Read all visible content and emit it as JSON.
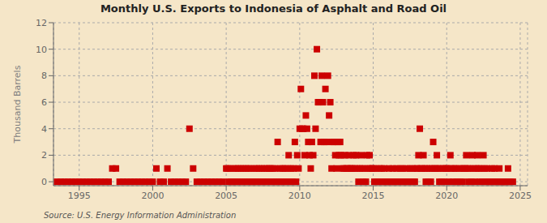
{
  "chart_data": {
    "type": "scatter",
    "title": "Monthly U.S. Exports to Indonesia of Asphalt and Road Oil",
    "ylabel": "Thousand Barrels",
    "source": "Source: U.S. Energy Information Administration",
    "color": "#cc0000",
    "marker": "square",
    "grid": true,
    "xlim": [
      1993.25,
      2025.5
    ],
    "ylim": [
      -0.3,
      12
    ],
    "xticks": [
      1995,
      2000,
      2005,
      2010,
      2015,
      2020,
      2025
    ],
    "yticks": [
      0,
      2,
      4,
      6,
      8,
      10,
      12
    ],
    "x": [
      1993.5,
      1993.75,
      1994.0,
      1994.25,
      1994.5,
      1994.75,
      1995.0,
      1995.25,
      1995.5,
      1995.75,
      1996.0,
      1996.25,
      1996.5,
      1996.75,
      1997.0,
      1997.25,
      1997.5,
      1997.75,
      1998.0,
      1998.25,
      1998.5,
      1998.75,
      1999.0,
      1999.25,
      1999.5,
      1999.75,
      2000.0,
      2000.25,
      2000.5,
      2000.75,
      2001.0,
      2001.25,
      2001.5,
      2001.75,
      2002.0,
      2002.25,
      2002.5,
      2002.75,
      2003.0,
      2003.25,
      2003.5,
      2003.75,
      2004.0,
      2004.25,
      2004.5,
      2004.75,
      2005.0,
      2005.08,
      2005.17,
      2005.25,
      2005.33,
      2005.42,
      2005.5,
      2005.58,
      2005.67,
      2005.75,
      2005.83,
      2005.92,
      2006.0,
      2006.08,
      2006.17,
      2006.25,
      2006.33,
      2006.42,
      2006.5,
      2006.58,
      2006.67,
      2006.75,
      2006.83,
      2006.92,
      2007.0,
      2007.08,
      2007.17,
      2007.25,
      2007.33,
      2007.42,
      2007.5,
      2007.58,
      2007.67,
      2007.75,
      2007.83,
      2007.92,
      2008.0,
      2008.08,
      2008.17,
      2008.25,
      2008.33,
      2008.42,
      2008.5,
      2008.58,
      2008.67,
      2008.75,
      2008.83,
      2008.92,
      2009.0,
      2009.08,
      2009.17,
      2009.25,
      2009.33,
      2009.42,
      2009.5,
      2009.58,
      2009.67,
      2009.75,
      2009.83,
      2009.92,
      2010.0,
      2010.08,
      2010.17,
      2010.25,
      2010.33,
      2010.42,
      2010.5,
      2010.58,
      2010.67,
      2010.75,
      2010.83,
      2010.92,
      2011.0,
      2011.08,
      2011.17,
      2011.25,
      2011.33,
      2011.42,
      2011.5,
      2011.58,
      2011.67,
      2011.75,
      2011.83,
      2011.92,
      2012.0,
      2012.08,
      2012.17,
      2012.25,
      2012.33,
      2012.42,
      2012.5,
      2012.58,
      2012.67,
      2012.75,
      2012.83,
      2012.92,
      2013.0,
      2013.08,
      2013.17,
      2013.25,
      2013.33,
      2013.42,
      2013.5,
      2013.58,
      2013.67,
      2013.75,
      2013.83,
      2013.92,
      2014.0,
      2014.08,
      2014.17,
      2014.25,
      2014.33,
      2014.42,
      2014.5,
      2014.58,
      2014.67,
      2014.75,
      2014.83,
      2014.92,
      2015.0,
      2015.08,
      2015.17,
      2015.25,
      2015.33,
      2015.42,
      2015.5,
      2015.58,
      2015.67,
      2015.75,
      2015.83,
      2015.92,
      2016.0,
      2016.08,
      2016.17,
      2016.25,
      2016.33,
      2016.42,
      2016.5,
      2016.58,
      2016.67,
      2016.75,
      2016.83,
      2016.92,
      2017.0,
      2017.08,
      2017.17,
      2017.25,
      2017.33,
      2017.42,
      2017.5,
      2017.58,
      2017.67,
      2017.75,
      2017.83,
      2017.92,
      2018.0,
      2018.08,
      2018.17,
      2018.25,
      2018.33,
      2018.42,
      2018.5,
      2018.58,
      2018.67,
      2018.75,
      2018.83,
      2018.92,
      2019.0,
      2019.08,
      2019.17,
      2019.25,
      2019.33,
      2019.42,
      2019.5,
      2019.58,
      2019.67,
      2019.75,
      2019.83,
      2019.92,
      2020.0,
      2020.08,
      2020.17,
      2020.25,
      2020.33,
      2020.42,
      2020.5,
      2020.58,
      2020.67,
      2020.75,
      2020.83,
      2020.92,
      2021.0,
      2021.08,
      2021.17,
      2021.25,
      2021.33,
      2021.42,
      2021.5,
      2021.58,
      2021.67,
      2021.75,
      2021.83,
      2021.92,
      2022.0,
      2022.08,
      2022.17,
      2022.25,
      2022.33,
      2022.42,
      2022.5,
      2022.58,
      2022.67,
      2022.75,
      2022.83,
      2022.92,
      2023.0,
      2023.08,
      2023.17,
      2023.25,
      2023.33,
      2023.42,
      2023.5,
      2023.58,
      2023.67,
      2023.75,
      2023.83,
      2023.92,
      2024.0,
      2024.08,
      2024.17,
      2024.25,
      2024.33,
      2024.5
    ],
    "values": [
      0,
      0,
      0,
      0,
      0,
      0,
      0,
      0,
      0,
      0,
      0,
      0,
      0,
      0,
      0,
      1,
      1,
      0,
      0,
      0,
      0,
      0,
      0,
      0,
      0,
      0,
      0,
      1,
      0,
      0,
      1,
      0,
      0,
      0,
      0,
      0,
      4,
      1,
      0,
      0,
      0,
      0,
      0,
      0,
      0,
      0,
      1,
      1,
      0,
      1,
      0,
      0,
      1,
      0,
      1,
      0,
      1,
      0,
      1,
      0,
      1,
      0,
      1,
      0,
      1,
      0,
      1,
      0,
      0,
      1,
      0,
      1,
      0,
      1,
      0,
      1,
      0,
      1,
      0,
      1,
      0,
      1,
      1,
      0,
      1,
      0,
      1,
      0,
      3,
      0,
      1,
      0,
      1,
      0,
      1,
      0,
      1,
      2,
      0,
      1,
      0,
      1,
      3,
      0,
      2,
      1,
      4,
      7,
      4,
      4,
      2,
      5,
      4,
      3,
      2,
      1,
      3,
      2,
      8,
      4,
      10,
      6,
      6,
      3,
      8,
      6,
      3,
      7,
      3,
      8,
      5,
      6,
      1,
      3,
      3,
      2,
      1,
      3,
      2,
      3,
      2,
      1,
      1,
      2,
      1,
      1,
      2,
      1,
      1,
      1,
      2,
      1,
      2,
      1,
      0,
      1,
      2,
      1,
      0,
      1,
      0,
      2,
      1,
      2,
      1,
      1,
      1,
      0,
      1,
      0,
      0,
      1,
      0,
      1,
      0,
      1,
      0,
      0,
      0,
      1,
      0,
      0,
      1,
      0,
      0,
      1,
      0,
      0,
      1,
      0,
      1,
      0,
      0,
      1,
      0,
      0,
      1,
      0,
      1,
      0,
      0,
      1,
      1,
      2,
      4,
      1,
      1,
      2,
      1,
      0,
      1,
      0,
      1,
      0,
      1,
      3,
      1,
      1,
      2,
      1,
      0,
      1,
      0,
      1,
      0,
      1,
      1,
      1,
      0,
      2,
      1,
      0,
      1,
      1,
      0,
      0,
      1,
      0,
      1,
      0,
      1,
      1,
      2,
      1,
      0,
      1,
      0,
      2,
      1,
      0,
      1,
      2,
      1,
      0,
      1,
      0,
      2,
      1,
      0,
      1,
      0,
      0,
      0,
      1,
      0,
      1,
      0,
      0,
      0,
      1,
      0,
      0,
      0,
      0,
      0,
      0,
      1,
      0,
      0,
      0
    ]
  }
}
